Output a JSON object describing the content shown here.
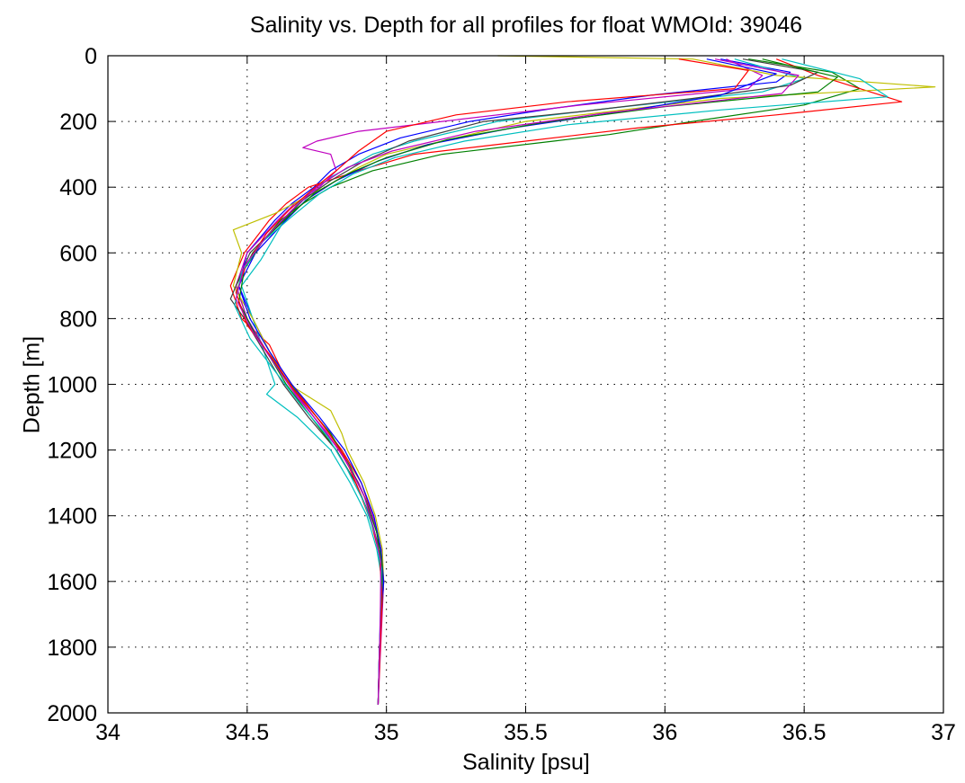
{
  "chart_data": {
    "type": "line",
    "title": "Salinity vs. Depth for all profiles for float WMOId: 39046",
    "xlabel": "Salinity [psu]",
    "ylabel": "Depth [m]",
    "xlim": [
      34,
      37
    ],
    "ylim": [
      0,
      2000
    ],
    "y_reversed": true,
    "grid": true,
    "x_ticks": [
      "34",
      "34.5",
      "35",
      "35.5",
      "36",
      "36.5",
      "37"
    ],
    "y_ticks": [
      "0",
      "200",
      "400",
      "600",
      "800",
      "1000",
      "1200",
      "1400",
      "1600",
      "1800",
      "2000"
    ],
    "series_colors": [
      "#0000ff",
      "#008000",
      "#ff0000",
      "#00bfbf",
      "#bf00bf",
      "#bfbf00",
      "#404040"
    ],
    "series": [
      {
        "depth": [
          10,
          50,
          80,
          120,
          160,
          200,
          250,
          300,
          350,
          400,
          450,
          500,
          600,
          700,
          800,
          900,
          1000,
          1100,
          1200,
          1300,
          1400,
          1500,
          1600,
          1800,
          1975
        ],
        "salinity": [
          36.2,
          36.45,
          36.4,
          35.95,
          35.6,
          35.3,
          35.05,
          34.9,
          34.8,
          34.74,
          34.66,
          34.6,
          34.5,
          34.47,
          34.52,
          34.58,
          34.65,
          34.74,
          34.83,
          34.9,
          34.95,
          34.98,
          34.99,
          34.975,
          34.97
        ]
      },
      {
        "depth": [
          10,
          50,
          100,
          150,
          200,
          240,
          260,
          300,
          350,
          400,
          450,
          500,
          600,
          700,
          800,
          900,
          1000,
          1100,
          1200,
          1300,
          1400,
          1500,
          1600,
          1800,
          1975
        ],
        "salinity": [
          36.3,
          36.6,
          36.7,
          36.5,
          36.1,
          35.8,
          35.6,
          35.2,
          34.95,
          34.8,
          34.7,
          34.62,
          34.52,
          34.46,
          34.5,
          34.57,
          34.64,
          34.73,
          34.82,
          34.89,
          34.94,
          34.97,
          34.985,
          34.975,
          34.97
        ]
      },
      {
        "depth": [
          10,
          60,
          140,
          180,
          220,
          260,
          300,
          350,
          400,
          450,
          500,
          600,
          700,
          800,
          880,
          950,
          1000,
          1100,
          1200,
          1300,
          1400,
          1500,
          1600,
          1800,
          1975
        ],
        "salinity": [
          36.4,
          36.55,
          36.85,
          36.4,
          35.9,
          35.5,
          35.1,
          34.9,
          34.72,
          34.64,
          34.58,
          34.49,
          34.44,
          34.48,
          34.58,
          34.62,
          34.66,
          34.75,
          34.84,
          34.91,
          34.95,
          34.98,
          34.99,
          34.975,
          34.97
        ]
      },
      {
        "depth": [
          10,
          70,
          110,
          160,
          200,
          260,
          300,
          370,
          400,
          450,
          520,
          620,
          700,
          800,
          900,
          1000,
          1030,
          1100,
          1200,
          1300,
          1400,
          1500,
          1600,
          1800,
          1975
        ],
        "salinity": [
          36.25,
          36.5,
          36.35,
          35.8,
          35.4,
          35.1,
          34.95,
          34.8,
          34.75,
          34.68,
          34.62,
          34.55,
          34.48,
          34.52,
          34.56,
          34.6,
          34.57,
          34.68,
          34.8,
          34.87,
          34.93,
          34.965,
          34.985,
          34.975,
          34.97
        ]
      },
      {
        "depth": [
          10,
          60,
          100,
          150,
          200,
          230,
          260,
          280,
          300,
          350,
          400,
          450,
          500,
          600,
          700,
          800,
          900,
          1000,
          1100,
          1200,
          1300,
          1400,
          1500,
          1600,
          1975
        ],
        "salinity": [
          36.22,
          36.35,
          36.3,
          35.7,
          35.2,
          34.9,
          34.75,
          34.7,
          34.8,
          34.82,
          34.76,
          34.67,
          34.61,
          34.5,
          34.46,
          34.5,
          34.57,
          34.65,
          34.74,
          34.83,
          34.9,
          34.95,
          34.98,
          34.99,
          34.97
        ]
      },
      {
        "depth": [
          0,
          10,
          60,
          95,
          130,
          200,
          300,
          340,
          400,
          480,
          530,
          600,
          700,
          800,
          900,
          1000,
          1080,
          1150,
          1200,
          1300,
          1400,
          1500,
          1600,
          1800,
          1975
        ],
        "salinity": [
          35.4,
          36.1,
          36.4,
          36.97,
          36.2,
          35.5,
          35.0,
          34.9,
          34.78,
          34.6,
          34.45,
          34.48,
          34.45,
          34.52,
          34.58,
          34.65,
          34.8,
          34.84,
          34.86,
          34.92,
          34.96,
          34.985,
          34.99,
          34.975,
          34.97
        ]
      },
      {
        "depth": [
          10,
          50,
          90,
          130,
          170,
          200,
          260,
          320,
          380,
          440,
          500,
          600,
          740,
          800,
          900,
          1000,
          1100,
          1200,
          1300,
          1400,
          1500,
          1600,
          1800,
          1975
        ],
        "salinity": [
          36.28,
          36.55,
          36.45,
          36.1,
          35.7,
          35.35,
          35.08,
          34.92,
          34.8,
          34.7,
          34.63,
          34.51,
          34.44,
          34.49,
          34.56,
          34.63,
          34.72,
          34.82,
          34.89,
          34.94,
          34.975,
          34.988,
          34.976,
          34.97
        ]
      },
      {
        "depth": [
          10,
          55,
          120,
          170,
          220,
          270,
          320,
          380,
          440,
          500,
          600,
          700,
          800,
          900,
          1000,
          1100,
          1200,
          1300,
          1400,
          1500,
          1600,
          1800,
          1975
        ],
        "salinity": [
          36.15,
          36.4,
          36.2,
          35.85,
          35.45,
          35.15,
          34.97,
          34.82,
          34.71,
          34.64,
          34.53,
          34.47,
          34.51,
          34.58,
          34.66,
          34.76,
          34.85,
          34.91,
          34.955,
          34.98,
          34.99,
          34.975,
          34.97
        ]
      },
      {
        "depth": [
          10,
          65,
          110,
          155,
          205,
          255,
          310,
          360,
          420,
          480,
          560,
          650,
          750,
          850,
          950,
          1050,
          1150,
          1250,
          1350,
          1450,
          1550,
          1700,
          1975
        ],
        "salinity": [
          36.35,
          36.62,
          36.55,
          36.0,
          35.55,
          35.22,
          35.0,
          34.86,
          34.74,
          34.66,
          34.56,
          34.49,
          34.47,
          34.53,
          34.61,
          34.7,
          34.8,
          34.87,
          34.925,
          34.965,
          34.985,
          34.98,
          34.97
        ]
      },
      {
        "depth": [
          10,
          45,
          100,
          140,
          180,
          230,
          290,
          350,
          410,
          470,
          540,
          630,
          720,
          820,
          920,
          1020,
          1120,
          1220,
          1320,
          1420,
          1520,
          1650,
          1975
        ],
        "salinity": [
          36.05,
          36.3,
          36.25,
          35.65,
          35.25,
          35.0,
          34.9,
          34.82,
          34.73,
          34.65,
          34.57,
          34.5,
          34.46,
          34.5,
          34.59,
          34.67,
          34.77,
          34.85,
          34.9,
          34.945,
          34.975,
          34.985,
          34.97
        ]
      },
      {
        "depth": [
          10,
          70,
          125,
          165,
          210,
          260,
          310,
          360,
          420,
          490,
          570,
          660,
          760,
          860,
          960,
          1060,
          1160,
          1260,
          1360,
          1460,
          1560,
          1700,
          1975
        ],
        "salinity": [
          36.42,
          36.7,
          36.8,
          36.2,
          35.65,
          35.28,
          35.03,
          34.88,
          34.76,
          34.66,
          34.55,
          34.48,
          34.455,
          34.51,
          34.6,
          34.69,
          34.79,
          34.86,
          34.92,
          34.96,
          34.982,
          34.978,
          34.97
        ]
      },
      {
        "depth": [
          10,
          60,
          115,
          175,
          230,
          290,
          340,
          400,
          470,
          550,
          640,
          740,
          840,
          940,
          1040,
          1140,
          1240,
          1340,
          1440,
          1540,
          1700,
          1975
        ],
        "salinity": [
          36.18,
          36.48,
          36.42,
          35.78,
          35.32,
          35.02,
          34.86,
          34.75,
          34.66,
          34.57,
          34.49,
          34.46,
          34.52,
          34.6,
          34.68,
          34.78,
          34.86,
          34.92,
          34.955,
          34.98,
          34.978,
          34.97
        ]
      }
    ]
  }
}
